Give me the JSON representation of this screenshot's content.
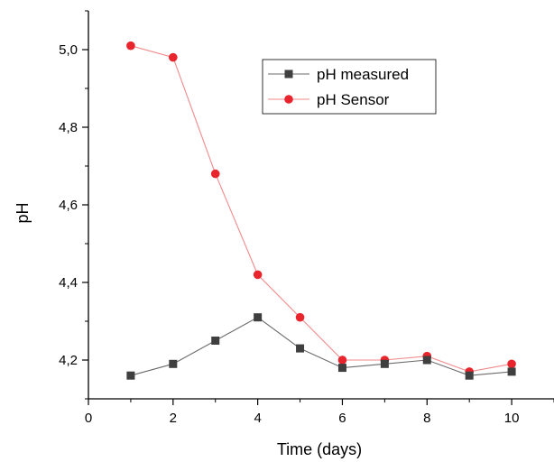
{
  "chart_data": {
    "type": "line",
    "title": "",
    "xlabel": "Time (days)",
    "ylabel": "pH",
    "xlim": [
      0,
      11
    ],
    "ylim": [
      4.1,
      5.1
    ],
    "x_ticks": [
      0,
      2,
      4,
      6,
      8,
      10
    ],
    "x_tick_labels": [
      "0",
      "2",
      "4",
      "6",
      "8",
      "10"
    ],
    "y_ticks": [
      4.2,
      4.4,
      4.6,
      4.8,
      5.0
    ],
    "y_tick_labels": [
      "4,2",
      "4,4",
      "4,6",
      "4,8",
      "5,0"
    ],
    "x": [
      1,
      2,
      3,
      4,
      5,
      6,
      7,
      8,
      9,
      10
    ],
    "series": [
      {
        "name": "pH measured",
        "marker": "square",
        "color": "#3f3f3f",
        "values": [
          4.16,
          4.19,
          4.25,
          4.31,
          4.23,
          4.18,
          4.19,
          4.2,
          4.16,
          4.17
        ]
      },
      {
        "name": "pH Sensor",
        "marker": "circle",
        "color": "#e8242c",
        "values": [
          5.01,
          4.98,
          4.68,
          4.42,
          4.31,
          4.2,
          4.2,
          4.21,
          4.17,
          4.19
        ]
      }
    ],
    "legend_position": "top-center",
    "grid": false
  }
}
